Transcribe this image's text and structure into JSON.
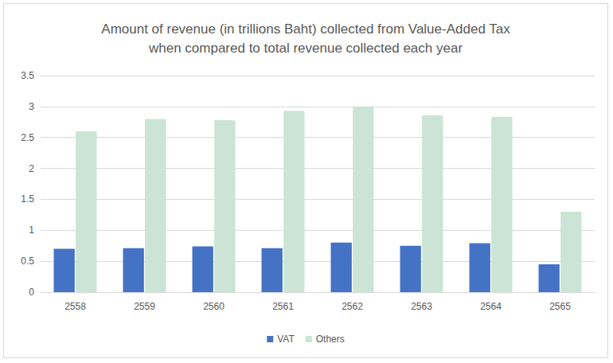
{
  "chart_data": {
    "type": "bar",
    "title": "Amount of revenue (in trillions Baht) collected from Value-Added Tax\nwhen compared to total revenue collected each year",
    "categories": [
      "2558",
      "2559",
      "2560",
      "2561",
      "2562",
      "2563",
      "2564",
      "2565"
    ],
    "series": [
      {
        "name": "VAT",
        "color": "#4472c4",
        "values": [
          0.7,
          0.71,
          0.74,
          0.71,
          0.8,
          0.75,
          0.79,
          0.45
        ]
      },
      {
        "name": "Others",
        "color": "#cbe4d6",
        "values": [
          2.6,
          2.8,
          2.78,
          2.93,
          3.0,
          2.86,
          2.83,
          1.3
        ]
      }
    ],
    "ylim": [
      0,
      3.5
    ],
    "yticks": [
      0,
      0.5,
      1,
      1.5,
      2,
      2.5,
      3,
      3.5
    ],
    "grid": true,
    "legend": "bottom"
  }
}
